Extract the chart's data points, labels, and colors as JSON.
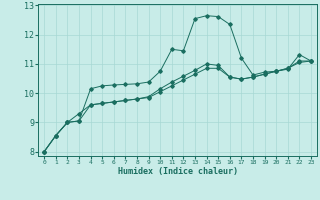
{
  "xlabel": "Humidex (Indice chaleur)",
  "background_color": "#c8ece8",
  "grid_color": "#a8d8d4",
  "line_color": "#1a6e60",
  "xmin": 0,
  "xmax": 23,
  "ymin": 8,
  "ymax": 13,
  "line1_x": [
    0,
    1,
    2,
    3,
    4,
    5,
    6,
    7,
    8,
    9,
    10,
    11,
    12,
    13,
    14,
    15,
    16,
    17,
    18,
    19,
    20,
    21,
    22,
    23
  ],
  "line1_y": [
    8.0,
    8.55,
    9.0,
    9.05,
    10.15,
    10.25,
    10.28,
    10.3,
    10.32,
    10.38,
    10.75,
    11.5,
    11.45,
    12.55,
    12.65,
    12.62,
    12.35,
    11.2,
    10.62,
    10.72,
    10.75,
    10.82,
    11.32,
    11.1
  ],
  "line2_x": [
    0,
    1,
    2,
    3,
    4,
    5,
    6,
    7,
    8,
    9,
    10,
    11,
    12,
    13,
    14,
    15,
    16,
    17,
    18,
    19,
    20,
    21,
    22,
    23
  ],
  "line2_y": [
    8.0,
    8.55,
    9.0,
    9.05,
    9.6,
    9.65,
    9.7,
    9.75,
    9.8,
    9.88,
    10.15,
    10.38,
    10.58,
    10.78,
    11.0,
    10.95,
    10.55,
    10.48,
    10.55,
    10.65,
    10.75,
    10.85,
    11.05,
    11.1
  ],
  "line3_x": [
    0,
    1,
    2,
    3,
    4,
    5,
    6,
    7,
    8,
    9,
    10,
    11,
    12,
    13,
    14,
    15,
    16,
    17,
    18,
    19,
    20,
    21,
    22,
    23
  ],
  "line3_y": [
    8.0,
    8.55,
    9.0,
    9.3,
    9.6,
    9.65,
    9.7,
    9.75,
    9.8,
    9.85,
    10.05,
    10.25,
    10.45,
    10.65,
    10.85,
    10.85,
    10.55,
    10.48,
    10.55,
    10.65,
    10.75,
    10.85,
    11.1,
    11.1
  ]
}
